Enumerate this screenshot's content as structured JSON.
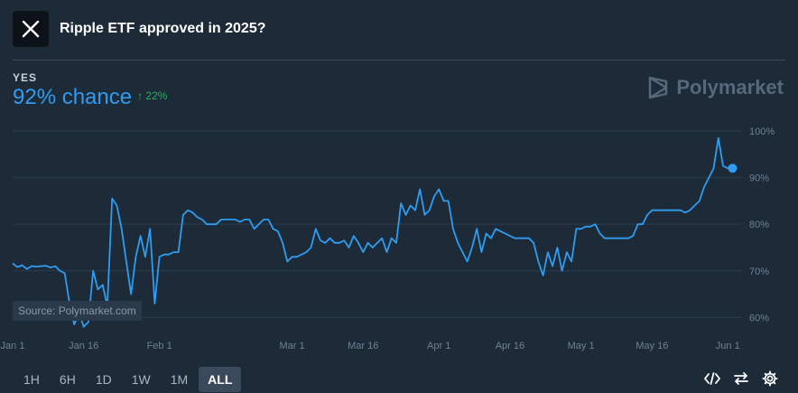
{
  "header": {
    "title": "Ripple ETF approved in 2025?",
    "logo_icon": "x-logo-icon"
  },
  "outcome": {
    "label": "YES",
    "chance": "92% chance",
    "change": "↑ 22%"
  },
  "brand": {
    "name": "Polymarket"
  },
  "source_label": "Source: Polymarket.com",
  "timeframes": [
    "1H",
    "6H",
    "1D",
    "1W",
    "1M",
    "ALL"
  ],
  "active_timeframe": "ALL",
  "tools": [
    "embed-code-icon",
    "swap-arrows-icon",
    "gear-icon"
  ],
  "colors": {
    "line": "#2e9cf0",
    "background": "#1d2b39",
    "positive": "#27ae60"
  },
  "chart_data": {
    "type": "line",
    "series": [
      {
        "points": [
          [
            "2025-01-01",
            71.6
          ],
          [
            "2025-01-02",
            70.8
          ],
          [
            "2025-01-03",
            71.2
          ],
          [
            "2025-01-04",
            70.4
          ],
          [
            "2025-01-05",
            71.0
          ],
          [
            "2025-01-06",
            70.9
          ],
          [
            "2025-01-07",
            71.0
          ],
          [
            "2025-01-08",
            71.1
          ],
          [
            "2025-01-09",
            70.7
          ],
          [
            "2025-01-10",
            71.0
          ],
          [
            "2025-01-11",
            70.0
          ],
          [
            "2025-01-12",
            69.5
          ],
          [
            "2025-01-13",
            63.0
          ],
          [
            "2025-01-14",
            58.5
          ],
          [
            "2025-01-15",
            61.0
          ],
          [
            "2025-01-16",
            58.0
          ],
          [
            "2025-01-17",
            59.0
          ],
          [
            "2025-01-18",
            70.0
          ],
          [
            "2025-01-19",
            66.0
          ],
          [
            "2025-01-20",
            67.0
          ],
          [
            "2025-01-21",
            62.5
          ],
          [
            "2025-01-22",
            85.5
          ],
          [
            "2025-01-23",
            84.0
          ],
          [
            "2025-01-24",
            79.0
          ],
          [
            "2025-01-25",
            72.0
          ],
          [
            "2025-01-26",
            65.0
          ],
          [
            "2025-01-27",
            73.0
          ],
          [
            "2025-01-28",
            77.5
          ],
          [
            "2025-01-29",
            73.0
          ],
          [
            "2025-01-30",
            79.0
          ],
          [
            "2025-01-31",
            63.0
          ],
          [
            "2025-02-01",
            73.0
          ],
          [
            "2025-02-02",
            73.5
          ],
          [
            "2025-02-03",
            73.5
          ],
          [
            "2025-02-04",
            74.0
          ],
          [
            "2025-02-05",
            74.0
          ],
          [
            "2025-02-06",
            82.0
          ],
          [
            "2025-02-07",
            83.0
          ],
          [
            "2025-02-08",
            82.5
          ],
          [
            "2025-02-09",
            81.5
          ],
          [
            "2025-02-10",
            81.0
          ],
          [
            "2025-02-11",
            80.0
          ],
          [
            "2025-02-12",
            80.0
          ],
          [
            "2025-02-13",
            80.0
          ],
          [
            "2025-02-14",
            81.0
          ],
          [
            "2025-02-15",
            81.0
          ],
          [
            "2025-02-16",
            81.0
          ],
          [
            "2025-02-17",
            81.0
          ],
          [
            "2025-02-18",
            80.5
          ],
          [
            "2025-02-19",
            81.0
          ],
          [
            "2025-02-20",
            81.0
          ],
          [
            "2025-02-21",
            79.0
          ],
          [
            "2025-02-22",
            80.0
          ],
          [
            "2025-02-23",
            81.0
          ],
          [
            "2025-02-24",
            81.0
          ],
          [
            "2025-02-25",
            79.0
          ],
          [
            "2025-02-26",
            78.5
          ],
          [
            "2025-02-27",
            76.0
          ],
          [
            "2025-02-28",
            72.0
          ],
          [
            "2025-03-01",
            73.0
          ],
          [
            "2025-03-02",
            73.0
          ],
          [
            "2025-03-03",
            73.5
          ],
          [
            "2025-03-04",
            74.0
          ],
          [
            "2025-03-05",
            75.0
          ],
          [
            "2025-03-06",
            79.0
          ],
          [
            "2025-03-07",
            76.5
          ],
          [
            "2025-03-08",
            76.0
          ],
          [
            "2025-03-09",
            77.0
          ],
          [
            "2025-03-10",
            76.0
          ],
          [
            "2025-03-11",
            76.0
          ],
          [
            "2025-03-12",
            76.5
          ],
          [
            "2025-03-13",
            75.0
          ],
          [
            "2025-03-14",
            77.5
          ],
          [
            "2025-03-15",
            76.0
          ],
          [
            "2025-03-16",
            74.0
          ],
          [
            "2025-03-17",
            76.0
          ],
          [
            "2025-03-18",
            75.0
          ],
          [
            "2025-03-19",
            76.0
          ],
          [
            "2025-03-20",
            77.0
          ],
          [
            "2025-03-21",
            74.0
          ],
          [
            "2025-03-22",
            77.0
          ],
          [
            "2025-03-23",
            76.0
          ],
          [
            "2025-03-24",
            84.5
          ],
          [
            "2025-03-25",
            82.0
          ],
          [
            "2025-03-26",
            84.0
          ],
          [
            "2025-03-27",
            83.0
          ],
          [
            "2025-03-28",
            87.5
          ],
          [
            "2025-03-29",
            82.0
          ],
          [
            "2025-03-30",
            83.0
          ],
          [
            "2025-03-31",
            86.0
          ],
          [
            "2025-04-01",
            87.5
          ],
          [
            "2025-04-02",
            85.0
          ],
          [
            "2025-04-03",
            85.0
          ],
          [
            "2025-04-04",
            79.0
          ],
          [
            "2025-04-05",
            76.0
          ],
          [
            "2025-04-06",
            74.0
          ],
          [
            "2025-04-07",
            72.0
          ],
          [
            "2025-04-08",
            75.0
          ],
          [
            "2025-04-09",
            79.0
          ],
          [
            "2025-04-10",
            74.0
          ],
          [
            "2025-04-11",
            78.0
          ],
          [
            "2025-04-12",
            77.0
          ],
          [
            "2025-04-13",
            79.0
          ],
          [
            "2025-04-14",
            78.5
          ],
          [
            "2025-04-15",
            78.0
          ],
          [
            "2025-04-16",
            77.5
          ],
          [
            "2025-04-17",
            77.0
          ],
          [
            "2025-04-18",
            77.0
          ],
          [
            "2025-04-19",
            77.0
          ],
          [
            "2025-04-20",
            77.0
          ],
          [
            "2025-04-21",
            76.0
          ],
          [
            "2025-04-22",
            72.0
          ],
          [
            "2025-04-23",
            69.0
          ],
          [
            "2025-04-24",
            74.0
          ],
          [
            "2025-04-25",
            71.0
          ],
          [
            "2025-04-26",
            75.0
          ],
          [
            "2025-04-27",
            70.0
          ],
          [
            "2025-04-28",
            74.0
          ],
          [
            "2025-04-29",
            72.0
          ],
          [
            "2025-04-30",
            79.0
          ],
          [
            "2025-05-01",
            79.0
          ],
          [
            "2025-05-02",
            79.5
          ],
          [
            "2025-05-03",
            79.5
          ],
          [
            "2025-05-04",
            80.0
          ],
          [
            "2025-05-05",
            78.0
          ],
          [
            "2025-05-06",
            77.0
          ],
          [
            "2025-05-07",
            77.0
          ],
          [
            "2025-05-08",
            77.0
          ],
          [
            "2025-05-09",
            77.0
          ],
          [
            "2025-05-10",
            77.0
          ],
          [
            "2025-05-11",
            77.0
          ],
          [
            "2025-05-12",
            77.5
          ],
          [
            "2025-05-13",
            80.0
          ],
          [
            "2025-05-14",
            80.0
          ],
          [
            "2025-05-15",
            82.0
          ],
          [
            "2025-05-16",
            83.0
          ],
          [
            "2025-05-17",
            83.0
          ],
          [
            "2025-05-18",
            83.0
          ],
          [
            "2025-05-19",
            83.0
          ],
          [
            "2025-05-20",
            83.0
          ],
          [
            "2025-05-21",
            83.0
          ],
          [
            "2025-05-22",
            83.0
          ],
          [
            "2025-05-23",
            82.5
          ],
          [
            "2025-05-24",
            83.0
          ],
          [
            "2025-05-25",
            84.0
          ],
          [
            "2025-05-26",
            85.0
          ],
          [
            "2025-05-27",
            88.0
          ],
          [
            "2025-05-28",
            90.0
          ],
          [
            "2025-05-29",
            92.0
          ],
          [
            "2025-05-30",
            98.5
          ],
          [
            "2025-05-31",
            92.5
          ],
          [
            "2025-06-01",
            92.0
          ],
          [
            "2025-06-02",
            92.0
          ]
        ]
      }
    ],
    "x_ticks": [
      [
        "2025-01-01",
        "Jan 1"
      ],
      [
        "2025-01-16",
        "Jan 16"
      ],
      [
        "2025-02-01",
        "Feb 1"
      ],
      [
        "2025-03-01",
        "Mar 1"
      ],
      [
        "2025-03-16",
        "Mar 16"
      ],
      [
        "2025-04-01",
        "Apr 1"
      ],
      [
        "2025-04-16",
        "Apr 16"
      ],
      [
        "2025-05-01",
        "May 1"
      ],
      [
        "2025-05-16",
        "May 16"
      ],
      [
        "2025-06-01",
        "Jun 1"
      ]
    ],
    "y_ticks": [
      100,
      90,
      80,
      70,
      60
    ],
    "y_tick_suffix": "%",
    "xlim": [
      "2025-01-01",
      "2025-06-04"
    ],
    "ylim": [
      56,
      100
    ],
    "grid": true
  }
}
